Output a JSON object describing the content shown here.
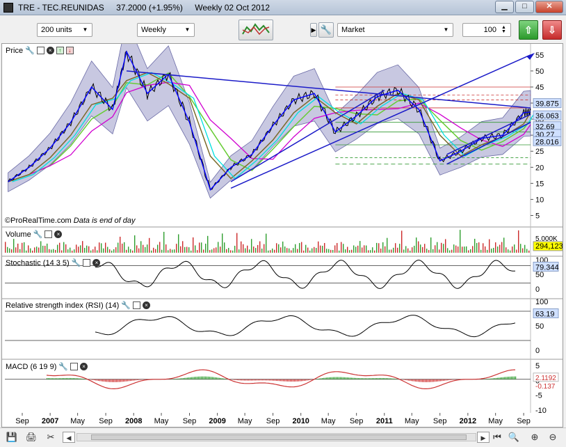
{
  "window": {
    "symbol": "TRE - TEC.REUNIDAS",
    "price_change": "37.2000 (+1.95%)",
    "period_date": "Weekly  02 Oct 2012"
  },
  "toolbar": {
    "units": "200 units",
    "interval": "Weekly",
    "order_type": "Market",
    "quantity": "100"
  },
  "panels": {
    "price": {
      "label": "Price"
    },
    "volume": {
      "label": "Volume"
    },
    "stochastic": {
      "label": "Stochastic (14 3 5)"
    },
    "rsi": {
      "label": "Relative strength index (RSI) (14)"
    },
    "macd": {
      "label": "MACD (6 19 9)"
    }
  },
  "watermark": {
    "source": "©ProRealTime.com",
    "note": "Data is end of day"
  },
  "colors": {
    "price_line": "#000000",
    "bollinger_fill": "#9b9bc9",
    "ma_blue": "#0000ff",
    "ma_cyan": "#00e0e0",
    "ma_olive": "#7a6a2a",
    "ma_magenta": "#d000d0",
    "ma_green": "#66cc33",
    "trend": "#1a1ac8",
    "volume_up": "#2e9e2e",
    "volume_down": "#cc2a2a",
    "label_blue": "#cfe0ff",
    "label_yellow": "#ffff00"
  },
  "chart_data": [
    {
      "type": "line",
      "name": "Price",
      "x_ticks": [
        "Sep",
        "2007",
        "May",
        "Sep",
        "2008",
        "May",
        "Sep",
        "2009",
        "May",
        "Sep",
        "2010",
        "May",
        "Sep",
        "2011",
        "May",
        "Sep",
        "2012",
        "May",
        "Sep"
      ],
      "y_ticks": [
        5,
        10,
        15,
        20,
        25,
        30,
        35,
        40,
        45,
        50,
        55
      ],
      "ylim": [
        2.5,
        58
      ],
      "x_dates": [
        "2006-07",
        "2006-10",
        "2007-01",
        "2007-04",
        "2007-07",
        "2007-10",
        "2007-12",
        "2008-03",
        "2008-06",
        "2008-09",
        "2008-12",
        "2009-03",
        "2009-06",
        "2009-09",
        "2009-12",
        "2010-03",
        "2010-06",
        "2010-09",
        "2010-12",
        "2011-03",
        "2011-06",
        "2011-09",
        "2011-12",
        "2012-03",
        "2012-06",
        "2012-09",
        "2012-10"
      ],
      "values": [
        15.5,
        20,
        26,
        34,
        45,
        38,
        56,
        43,
        49,
        34,
        13,
        20,
        24,
        33,
        41,
        43,
        31,
        36,
        42,
        44,
        38,
        22,
        25,
        29,
        30,
        37,
        37.2
      ],
      "price_labels": [
        "39.875",
        "36.063",
        "32.69",
        "30.27",
        "28.016"
      ],
      "price_label_values": [
        39.875,
        36.063,
        32.69,
        30.27,
        28.016
      ]
    },
    {
      "type": "bar",
      "name": "Volume",
      "y_ticks": [
        "5.000K",
        "0"
      ],
      "last_value": "294,123"
    },
    {
      "type": "line",
      "name": "Stochastic (14 3 5)",
      "y_ticks": [
        100,
        50,
        0
      ],
      "last_value": "79.344"
    },
    {
      "type": "line",
      "name": "Relative strength index (RSI) (14)",
      "y_ticks": [
        100,
        50,
        0
      ],
      "last_value": "63.19"
    },
    {
      "type": "line",
      "name": "MACD (6 19 9)",
      "y_ticks": [
        5,
        0,
        -5,
        -10
      ],
      "last_values": [
        "2.1192",
        "-0.137"
      ]
    }
  ]
}
